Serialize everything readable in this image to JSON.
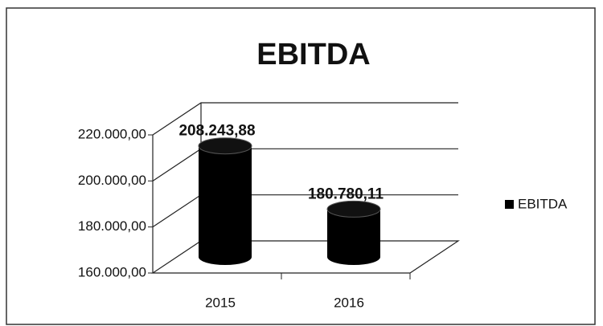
{
  "chart_data": {
    "type": "bar3d",
    "title": "EBITDA",
    "categories": [
      "2015",
      "2016"
    ],
    "series": [
      {
        "name": "EBITDA",
        "color": "#000000",
        "values": [
          208243.88,
          180780.11
        ],
        "value_labels": [
          "208.243,88",
          "180.780,11"
        ]
      }
    ],
    "ylim": [
      160000,
      220000
    ],
    "yticks": [
      {
        "value": 160000,
        "label": "160.000,00"
      },
      {
        "value": 180000,
        "label": "180.000,00"
      },
      {
        "value": 200000,
        "label": "200.000,00"
      },
      {
        "value": 220000,
        "label": "220.000,00"
      }
    ],
    "grid": true,
    "legend": "right"
  }
}
